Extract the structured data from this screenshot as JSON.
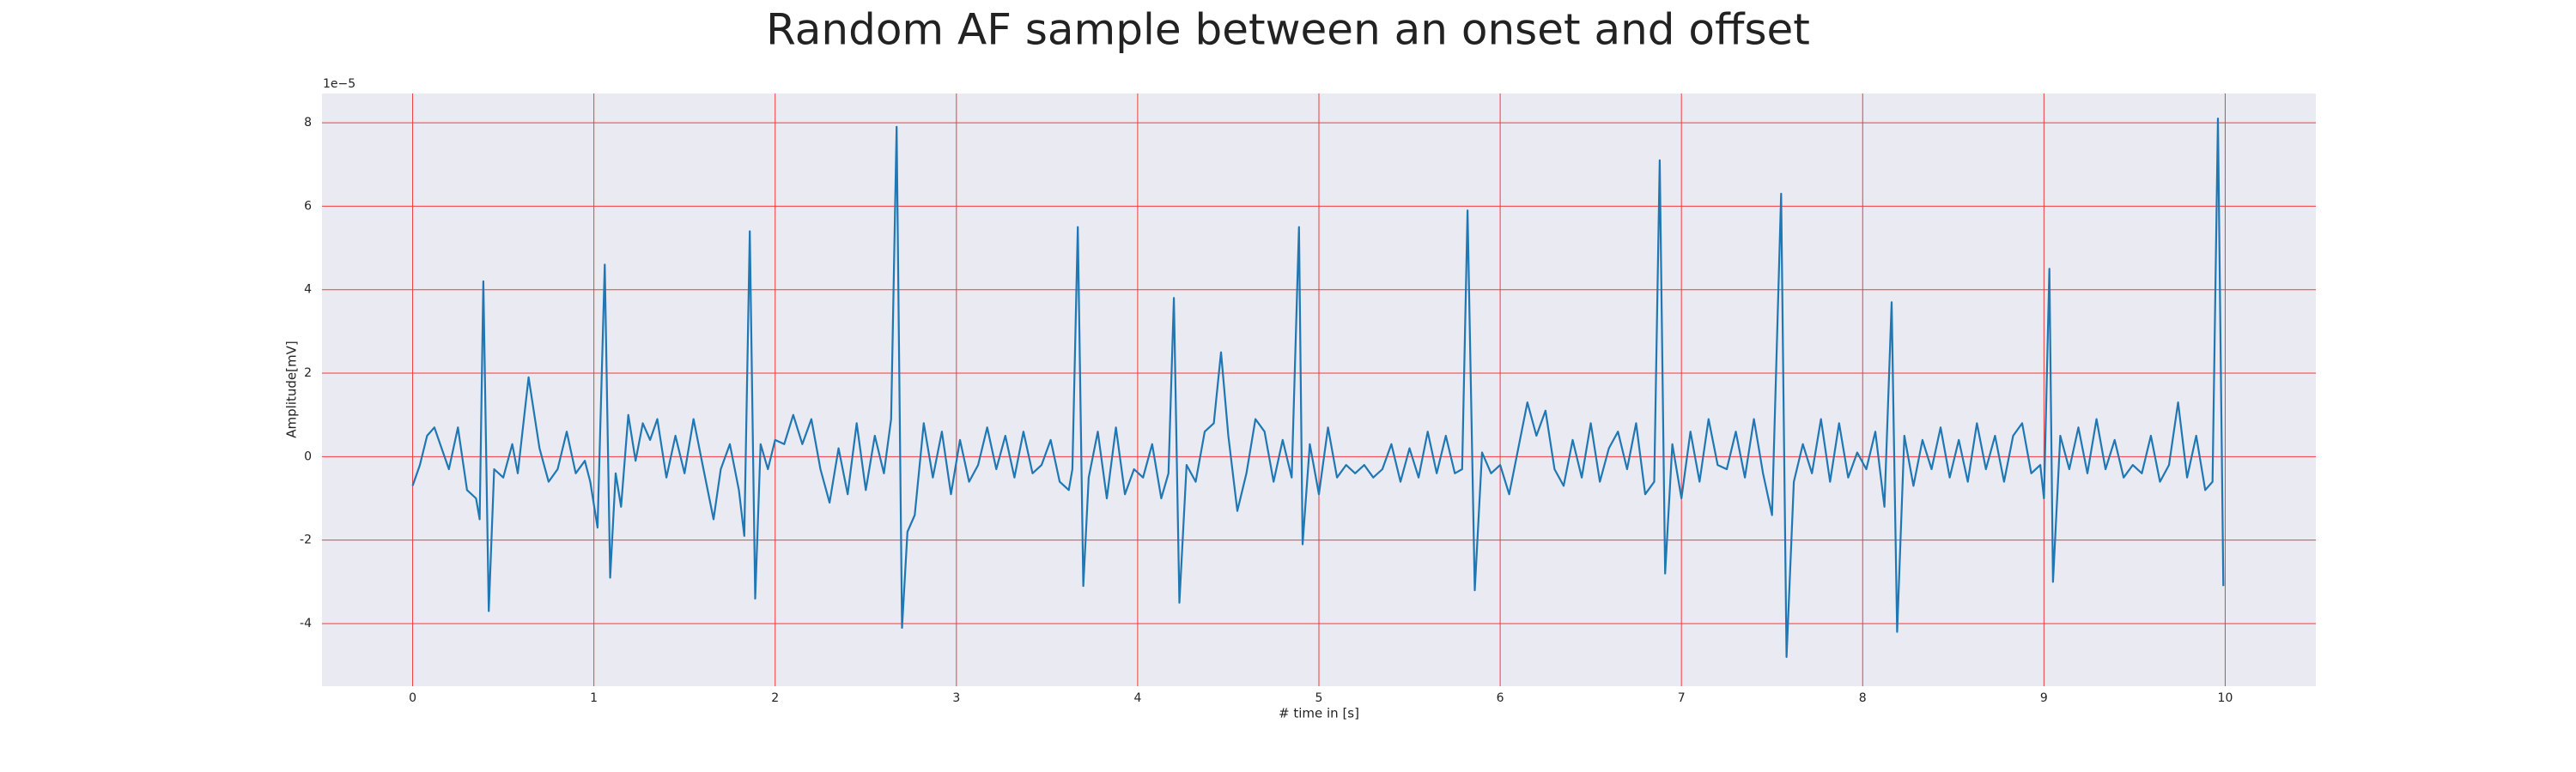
{
  "chart_data": {
    "type": "line",
    "title": "Random AF sample between an onset and offset",
    "xlabel": "# time in [s]",
    "ylabel": "Amplitude[mV]",
    "y_offset_label": "1e−5",
    "color": "#1f77b4",
    "grid": true,
    "grid_color": "#f03c3c",
    "background": "#eaeaf2",
    "xlim": [
      -0.5,
      10.5
    ],
    "ylim": [
      -5.5,
      8.7
    ],
    "xticks": [
      0,
      1,
      2,
      3,
      4,
      5,
      6,
      7,
      8,
      9,
      10
    ],
    "yticks": [
      -4,
      -2,
      0,
      2,
      4,
      6,
      8
    ],
    "x": [
      0,
      0.04,
      0.08,
      0.12,
      0.16,
      0.2,
      0.25,
      0.3,
      0.35,
      0.37,
      0.39,
      0.42,
      0.45,
      0.5,
      0.55,
      0.58,
      0.64,
      0.7,
      0.75,
      0.8,
      0.85,
      0.9,
      0.95,
      0.98,
      1.02,
      1.06,
      1.09,
      1.12,
      1.15,
      1.19,
      1.23,
      1.27,
      1.31,
      1.35,
      1.4,
      1.45,
      1.5,
      1.55,
      1.6,
      1.66,
      1.7,
      1.75,
      1.8,
      1.83,
      1.86,
      1.89,
      1.92,
      1.96,
      2.0,
      2.05,
      2.1,
      2.15,
      2.2,
      2.25,
      2.3,
      2.35,
      2.4,
      2.45,
      2.5,
      2.55,
      2.6,
      2.64,
      2.67,
      2.7,
      2.73,
      2.77,
      2.82,
      2.87,
      2.92,
      2.97,
      3.02,
      3.07,
      3.12,
      3.17,
      3.22,
      3.27,
      3.32,
      3.37,
      3.42,
      3.47,
      3.52,
      3.57,
      3.62,
      3.64,
      3.67,
      3.7,
      3.73,
      3.78,
      3.83,
      3.88,
      3.93,
      3.98,
      4.03,
      4.08,
      4.13,
      4.17,
      4.2,
      4.23,
      4.27,
      4.32,
      4.37,
      4.42,
      4.46,
      4.5,
      4.55,
      4.6,
      4.65,
      4.7,
      4.75,
      4.8,
      4.85,
      4.89,
      4.91,
      4.95,
      5.0,
      5.05,
      5.1,
      5.15,
      5.2,
      5.25,
      5.3,
      5.35,
      5.4,
      5.45,
      5.5,
      5.55,
      5.6,
      5.65,
      5.7,
      5.75,
      5.79,
      5.82,
      5.86,
      5.9,
      5.95,
      6.0,
      6.05,
      6.1,
      6.15,
      6.2,
      6.25,
      6.3,
      6.35,
      6.4,
      6.45,
      6.5,
      6.55,
      6.6,
      6.65,
      6.7,
      6.75,
      6.8,
      6.85,
      6.88,
      6.91,
      6.95,
      7.0,
      7.05,
      7.1,
      7.15,
      7.2,
      7.25,
      7.3,
      7.35,
      7.4,
      7.45,
      7.5,
      7.55,
      7.58,
      7.62,
      7.67,
      7.72,
      7.77,
      7.82,
      7.87,
      7.92,
      7.97,
      8.02,
      8.07,
      8.12,
      8.16,
      8.19,
      8.23,
      8.28,
      8.33,
      8.38,
      8.43,
      8.48,
      8.53,
      8.58,
      8.63,
      8.68,
      8.73,
      8.78,
      8.83,
      8.88,
      8.93,
      8.98,
      9.0,
      9.03,
      9.05,
      9.09,
      9.14,
      9.19,
      9.24,
      9.29,
      9.34,
      9.39,
      9.44,
      9.49,
      9.54,
      9.59,
      9.64,
      9.69,
      9.74,
      9.79,
      9.84,
      9.89,
      9.93,
      9.96,
      9.99
    ],
    "values": [
      -0.7,
      -0.2,
      0.5,
      0.7,
      0.2,
      -0.3,
      0.7,
      -0.8,
      -1.0,
      -1.5,
      4.2,
      -3.7,
      -0.3,
      -0.5,
      0.3,
      -0.4,
      1.9,
      0.2,
      -0.6,
      -0.3,
      0.6,
      -0.4,
      -0.1,
      -0.6,
      -1.7,
      4.6,
      -2.9,
      -0.4,
      -1.2,
      1.0,
      -0.1,
      0.8,
      0.4,
      0.9,
      -0.5,
      0.5,
      -0.4,
      0.9,
      -0.2,
      -1.5,
      -0.3,
      0.3,
      -0.8,
      -1.9,
      5.4,
      -3.4,
      0.3,
      -0.3,
      0.4,
      0.3,
      1.0,
      0.3,
      0.9,
      -0.3,
      -1.1,
      0.2,
      -0.9,
      0.8,
      -0.8,
      0.5,
      -0.4,
      0.9,
      7.9,
      -4.1,
      -1.8,
      -1.4,
      0.8,
      -0.5,
      0.6,
      -0.9,
      0.4,
      -0.6,
      -0.2,
      0.7,
      -0.3,
      0.5,
      -0.5,
      0.6,
      -0.4,
      -0.2,
      0.4,
      -0.6,
      -0.8,
      -0.3,
      5.5,
      -3.1,
      -0.5,
      0.6,
      -1.0,
      0.7,
      -0.9,
      -0.3,
      -0.5,
      0.3,
      -1.0,
      -0.4,
      3.8,
      -3.5,
      -0.2,
      -0.6,
      0.6,
      0.8,
      2.5,
      0.5,
      -1.3,
      -0.4,
      0.9,
      0.6,
      -0.6,
      0.4,
      -0.5,
      5.5,
      -2.1,
      0.3,
      -0.9,
      0.7,
      -0.5,
      -0.2,
      -0.4,
      -0.2,
      -0.5,
      -0.3,
      0.3,
      -0.6,
      0.2,
      -0.5,
      0.6,
      -0.4,
      0.5,
      -0.4,
      -0.3,
      5.9,
      -3.2,
      0.1,
      -0.4,
      -0.2,
      -0.9,
      0.2,
      1.3,
      0.5,
      1.1,
      -0.3,
      -0.7,
      0.4,
      -0.5,
      0.8,
      -0.6,
      0.2,
      0.6,
      -0.3,
      0.8,
      -0.9,
      -0.6,
      7.1,
      -2.8,
      0.3,
      -1.0,
      0.6,
      -0.6,
      0.9,
      -0.2,
      -0.3,
      0.6,
      -0.5,
      0.9,
      -0.4,
      -1.4,
      6.3,
      -4.8,
      -0.6,
      0.3,
      -0.4,
      0.9,
      -0.6,
      0.8,
      -0.5,
      0.1,
      -0.3,
      0.6,
      -1.2,
      3.7,
      -4.2,
      0.5,
      -0.7,
      0.4,
      -0.3,
      0.7,
      -0.5,
      0.4,
      -0.6,
      0.8,
      -0.3,
      0.5,
      -0.6,
      0.5,
      0.8,
      -0.4,
      -0.2,
      -1.0,
      4.5,
      -3.0,
      0.5,
      -0.3,
      0.7,
      -0.4,
      0.9,
      -0.3,
      0.4,
      -0.5,
      -0.2,
      -0.4,
      0.5,
      -0.6,
      -0.2,
      1.3,
      -0.5,
      0.5,
      -0.8,
      -0.6,
      8.1,
      -3.1
    ]
  }
}
